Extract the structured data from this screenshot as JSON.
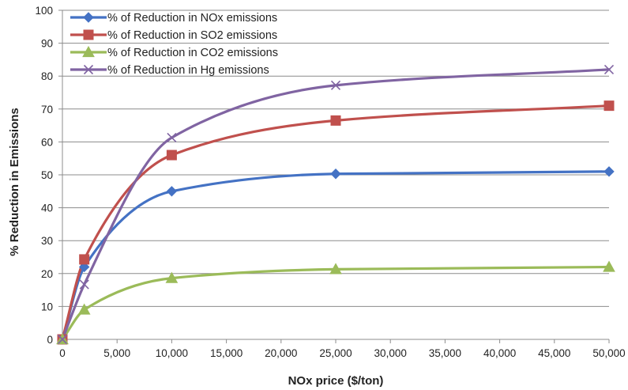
{
  "chart_data": {
    "type": "line",
    "title": "",
    "xlabel": "NOx price ($/ton)",
    "ylabel": "% Reduction in Emissions",
    "xlim": [
      0,
      50000
    ],
    "ylim": [
      0,
      100
    ],
    "x_ticks": [
      0,
      5000,
      10000,
      15000,
      20000,
      25000,
      30000,
      35000,
      40000,
      45000,
      50000
    ],
    "x_tick_labels": [
      "0",
      "5,000",
      "10,000",
      "15,000",
      "20,000",
      "25,000",
      "30,000",
      "35,000",
      "40,000",
      "45,000",
      "50,000"
    ],
    "y_ticks": [
      0,
      10,
      20,
      30,
      40,
      50,
      60,
      70,
      80,
      90,
      100
    ],
    "y_tick_labels": [
      "0",
      "10",
      "20",
      "30",
      "40",
      "50",
      "60",
      "70",
      "80",
      "90",
      "100"
    ],
    "grid": "horizontal",
    "legend_position": "top-left",
    "x": [
      0,
      2000,
      10000,
      25000,
      50000
    ],
    "series": [
      {
        "name": "% of Reduction in NOx emissions",
        "values": [
          0,
          22,
          45,
          50.3,
          51
        ],
        "color": "#4472C4",
        "marker": "diamond"
      },
      {
        "name": "% of Reduction in SO2 emissions",
        "values": [
          0,
          24.3,
          56,
          66.5,
          71
        ],
        "color": "#C0504D",
        "marker": "square"
      },
      {
        "name": "% of Reduction in CO2 emissions",
        "values": [
          0,
          9,
          18.6,
          21.3,
          22
        ],
        "color": "#9BBB59",
        "marker": "triangle"
      },
      {
        "name": "% of Reduction in Hg emissions",
        "values": [
          0,
          16.7,
          61.3,
          77.2,
          82
        ],
        "color": "#8064A2",
        "marker": "x"
      }
    ]
  }
}
